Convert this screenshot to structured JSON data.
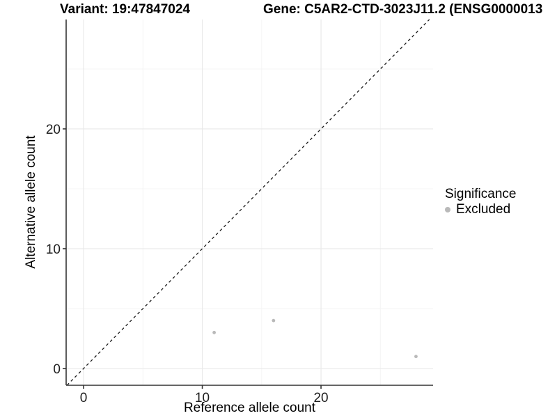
{
  "titles": {
    "variant": "Variant: 19:47847024",
    "gene": "Gene: C5AR2-CTD-3023J11.2 (ENSG0000013"
  },
  "legend": {
    "title": "Significance",
    "items": [
      {
        "label": "Excluded",
        "color": "#b9b9b9"
      }
    ]
  },
  "chart_data": {
    "type": "scatter",
    "xlabel": "Reference allele count",
    "ylabel": "Alternative allele count",
    "xlim": [
      -1.47,
      29.44
    ],
    "ylim": [
      -1.4,
      29.13
    ],
    "xticks": [
      0,
      10,
      20
    ],
    "yticks": [
      0,
      10,
      20
    ],
    "x_minor_gridlines": [
      5,
      15,
      25
    ],
    "y_minor_gridlines": [
      5,
      15,
      25
    ],
    "grid": true,
    "legend_position": "right",
    "series": [
      {
        "name": "Excluded",
        "color": "#b9b9b9",
        "points": [
          {
            "x": 11,
            "y": 3
          },
          {
            "x": 16,
            "y": 4
          },
          {
            "x": 28,
            "y": 1
          }
        ]
      }
    ],
    "identity_line": {
      "slope": 1,
      "intercept": 0,
      "style": "dashed",
      "color": "#1a1a1a"
    },
    "colors": {
      "grid_major": "#e9e9e9",
      "grid_minor": "#f4f4f4",
      "axis_line": "#333333",
      "tick_label": "#1f1f1f"
    }
  }
}
